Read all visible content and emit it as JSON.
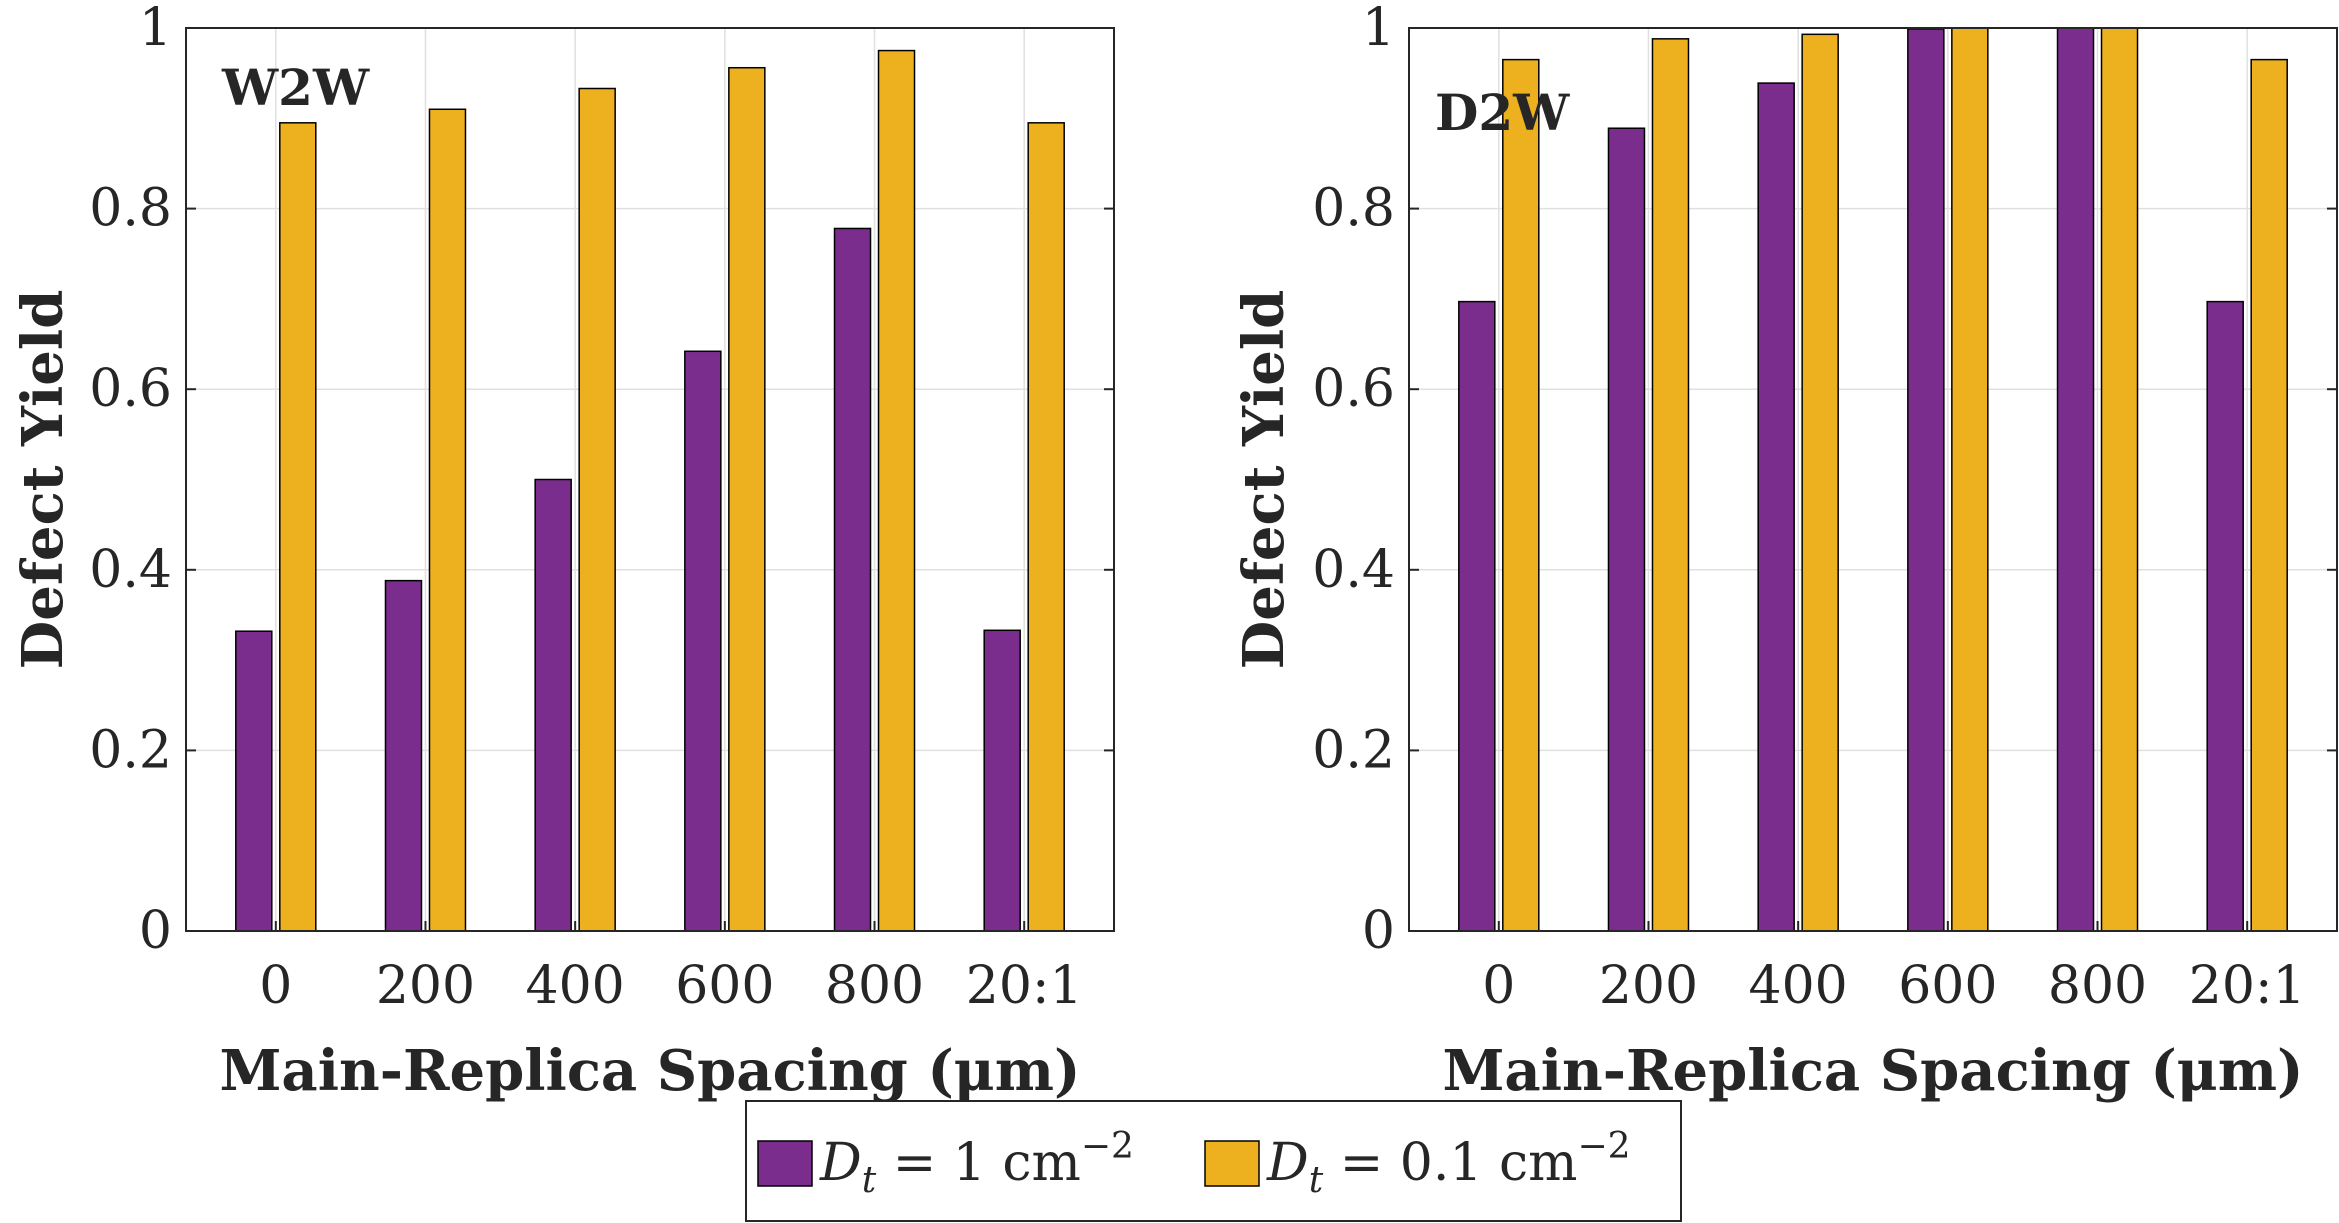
{
  "colors": {
    "series1": "#7B2D8E",
    "series2": "#EDB120",
    "axis": "#262626",
    "grid": "#E0E0E0"
  },
  "legend": {
    "entries": [
      {
        "var": "D",
        "sub": "t",
        "rest": " = 1 cm",
        "sup": "−2"
      },
      {
        "var": "D",
        "sub": "t",
        "rest": " = 0.1 cm",
        "sup": "−2"
      }
    ]
  },
  "chart_data": [
    {
      "type": "bar",
      "title": "W2W",
      "xlabel": "Main-Replica Spacing (μm)",
      "ylabel": "Defect Yield",
      "ylim": [
        0,
        1
      ],
      "yticks": [
        0,
        0.2,
        0.4,
        0.6,
        0.8,
        1
      ],
      "ytick_labels": [
        "0",
        "0.2",
        "0.4",
        "0.6",
        "0.8",
        "1"
      ],
      "categories": [
        "0",
        "200",
        "400",
        "600",
        "800",
        "20:1"
      ],
      "grid": true,
      "series": [
        {
          "name": "D_t = 1 cm^-2",
          "values": [
            0.332,
            0.388,
            0.5,
            0.642,
            0.778,
            0.333
          ]
        },
        {
          "name": "D_t = 0.1 cm^-2",
          "values": [
            0.895,
            0.91,
            0.933,
            0.956,
            0.975,
            0.895
          ]
        }
      ]
    },
    {
      "type": "bar",
      "title": "D2W",
      "xlabel": "Main-Replica Spacing (μm)",
      "ylabel": "Defect Yield",
      "ylim": [
        0,
        1
      ],
      "yticks": [
        0,
        0.2,
        0.4,
        0.6,
        0.8,
        1
      ],
      "ytick_labels": [
        "0",
        "0.2",
        "0.4",
        "0.6",
        "0.8",
        "1"
      ],
      "categories": [
        "0",
        "200",
        "400",
        "600",
        "800",
        "20:1"
      ],
      "grid": true,
      "series": [
        {
          "name": "D_t = 1 cm^-2",
          "values": [
            0.697,
            0.889,
            0.939,
            0.999,
            1.0,
            0.697
          ]
        },
        {
          "name": "D_t = 0.1 cm^-2",
          "values": [
            0.965,
            0.988,
            0.993,
            1.0,
            1.0,
            0.965
          ]
        }
      ]
    }
  ]
}
